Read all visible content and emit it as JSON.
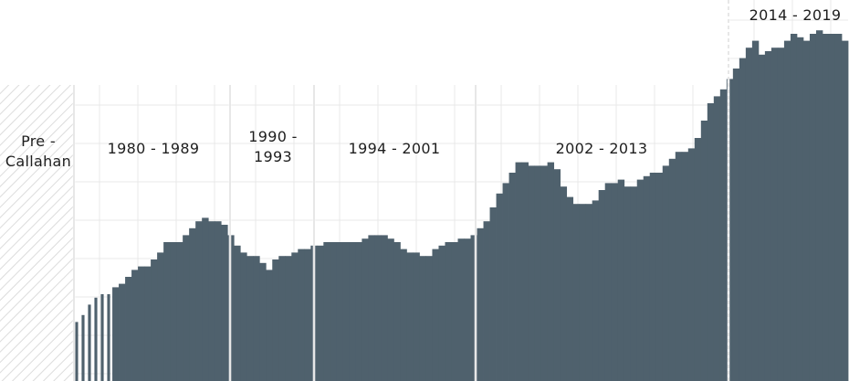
{
  "colors": {
    "bar": "#4f616d",
    "grid": "#e9e9e9",
    "divider": "#cfcfcf",
    "hatch": "#dcdcdc",
    "text": "#1e1e1e"
  },
  "chart_data": {
    "type": "bar",
    "title": "",
    "xlabel": "",
    "ylabel": "",
    "ylim": [
      0,
      100
    ],
    "grid": true,
    "segments": [
      {
        "label": [
          "Pre -",
          "Callahan"
        ],
        "hatched": true
      },
      {
        "label": [
          "1980 - 1989"
        ]
      },
      {
        "label": [
          "1990 -",
          "1993"
        ]
      },
      {
        "label": [
          "1994 - 2001"
        ]
      },
      {
        "label": [
          "2002 - 2013"
        ]
      },
      {
        "label": [
          "2014 - 2019"
        ]
      }
    ],
    "series": [
      {
        "values": [
          17,
          19,
          22,
          24,
          25,
          25,
          27,
          28,
          30,
          32,
          33,
          33,
          35,
          37,
          40,
          40,
          40,
          42,
          44,
          46,
          47,
          46,
          46,
          45,
          42,
          39,
          37,
          36,
          36,
          34,
          32,
          35,
          36,
          36,
          37,
          38,
          38,
          39,
          39,
          40,
          40,
          40,
          40,
          40,
          40,
          41,
          42,
          42,
          42,
          41,
          40,
          38,
          37,
          37,
          36,
          36,
          38,
          39,
          40,
          40,
          41,
          41,
          42,
          44,
          46,
          50,
          54,
          57,
          60,
          63,
          63,
          62,
          62,
          62,
          63,
          61,
          56,
          53,
          51,
          51,
          51,
          52,
          55,
          57,
          57,
          58,
          56,
          56,
          58,
          59,
          60,
          60,
          62,
          64,
          66,
          66,
          67,
          70,
          75,
          80,
          82,
          84,
          87,
          90,
          93,
          96,
          98,
          94,
          95,
          96,
          96,
          98,
          100,
          99,
          98,
          100,
          101,
          100,
          100,
          100,
          98
        ]
      }
    ]
  }
}
